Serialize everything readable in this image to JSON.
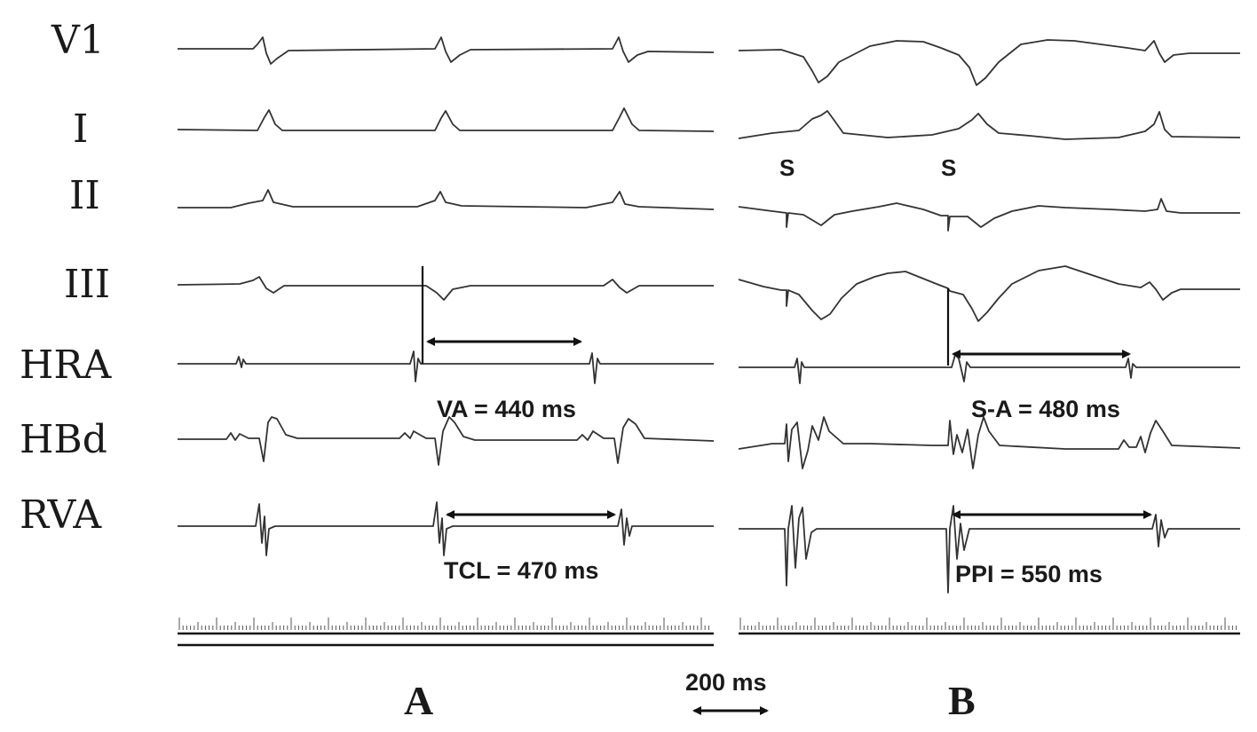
{
  "leads": [
    "V1",
    "I",
    "II",
    "III",
    "HRA",
    "HBd",
    "RVA"
  ],
  "panels": [
    "A",
    "B"
  ],
  "panel_a": {
    "va_label": "VA = 440 ms",
    "tcl_label": "TCL = 470 ms"
  },
  "panel_b": {
    "sa_label": "S-A = 480 ms",
    "ppi_label": "PPI = 550 ms",
    "stim_labels": [
      "S",
      "S"
    ]
  },
  "scale_bar": {
    "label": "200 ms"
  }
}
